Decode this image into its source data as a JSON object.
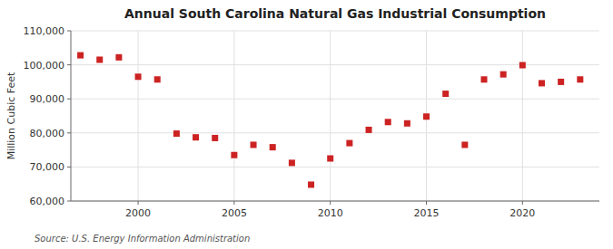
{
  "chart_data": {
    "type": "scatter",
    "title": "Annual South Carolina Natural Gas Industrial Consumption",
    "y_label": "Million Cubic Feet",
    "annotations": [
      "Source: U.S. Energy Information Administration"
    ],
    "x": [
      1997,
      1998,
      1999,
      2000,
      2001,
      2002,
      2003,
      2004,
      2005,
      2006,
      2007,
      2008,
      2009,
      2010,
      2011,
      2012,
      2013,
      2014,
      2015,
      2016,
      2017,
      2018,
      2019,
      2020,
      2021,
      2022,
      2023
    ],
    "values": [
      102800,
      101500,
      102200,
      96500,
      95700,
      79800,
      78700,
      78500,
      73500,
      76500,
      75800,
      71200,
      64800,
      72500,
      77000,
      80900,
      83200,
      82800,
      84800,
      91500,
      76500,
      95700,
      97200,
      99900,
      94600,
      95000,
      95700
    ],
    "color": "#cc2222",
    "marker": "square",
    "xlim": [
      1996.5,
      2024
    ],
    "xticks": [
      2000,
      2005,
      2010,
      2015,
      2020
    ],
    "ylim": [
      60000,
      110000
    ],
    "yticks": [
      {
        "value": 60000,
        "label": "60,000"
      },
      {
        "value": 70000,
        "label": "70,000"
      },
      {
        "value": 80000,
        "label": "80,000"
      },
      {
        "value": 90000,
        "label": "90,000"
      },
      {
        "value": 100000,
        "label": "100,000"
      },
      {
        "value": 110000,
        "label": "110,000"
      }
    ],
    "grid": true
  }
}
